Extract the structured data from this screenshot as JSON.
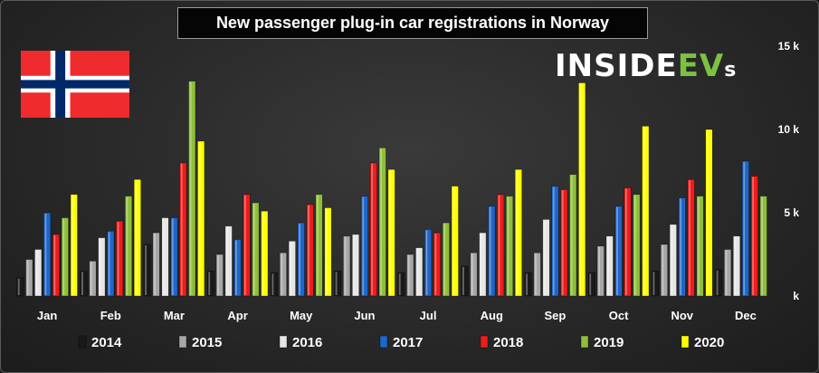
{
  "chart_data": {
    "type": "bar",
    "title": "New passenger plug-in car registrations in Norway",
    "logo": "INSIDEEVs",
    "categories": [
      "Jan",
      "Feb",
      "Mar",
      "Apr",
      "May",
      "Jun",
      "Jul",
      "Aug",
      "Sep",
      "Oct",
      "Nov",
      "Dec"
    ],
    "ylim": [
      0,
      15000
    ],
    "yticks": [
      {
        "value": 0,
        "label": "k"
      },
      {
        "value": 5000,
        "label": "5 k"
      },
      {
        "value": 10000,
        "label": "10 k"
      },
      {
        "value": 15000,
        "label": "15 k"
      }
    ],
    "grid": false,
    "legend_position": "bottom",
    "series": [
      {
        "name": "2014",
        "color": "#1a1a1a",
        "values": [
          1100,
          1500,
          3100,
          1500,
          1400,
          1500,
          1400,
          1800,
          1400,
          1400,
          1500,
          1600
        ]
      },
      {
        "name": "2015",
        "color": "#a6a6a6",
        "values": [
          2200,
          2100,
          3800,
          2500,
          2600,
          3600,
          2500,
          2600,
          2600,
          3000,
          3100,
          2800
        ]
      },
      {
        "name": "2016",
        "color": "#e6e6e6",
        "values": [
          2800,
          3500,
          4700,
          4200,
          3300,
          3700,
          2900,
          3800,
          4600,
          3600,
          4300,
          3600
        ]
      },
      {
        "name": "2017",
        "color": "#1f66c9",
        "values": [
          5000,
          3900,
          4700,
          3400,
          4400,
          6000,
          4000,
          5400,
          6600,
          5400,
          5900,
          8100
        ]
      },
      {
        "name": "2018",
        "color": "#ee1c1c",
        "values": [
          3700,
          4500,
          8000,
          6100,
          5500,
          8000,
          3800,
          6100,
          6400,
          6500,
          7000,
          7200
        ]
      },
      {
        "name": "2019",
        "color": "#8fbf3a",
        "values": [
          4700,
          6000,
          12900,
          5600,
          6100,
          8900,
          4400,
          6000,
          7300,
          6100,
          6000,
          6000
        ]
      },
      {
        "name": "2020",
        "color": "#ffff00",
        "values": [
          6100,
          7000,
          9300,
          5100,
          5300,
          7600,
          6600,
          7600,
          12800,
          10200,
          10000,
          null
        ]
      }
    ]
  }
}
